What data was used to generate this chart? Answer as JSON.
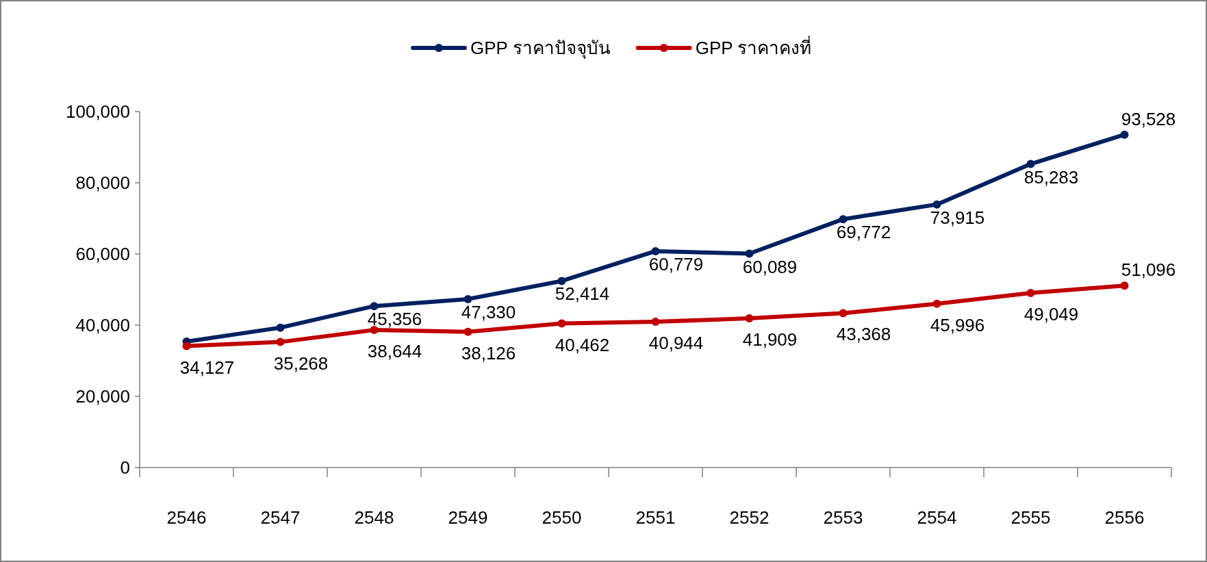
{
  "chart_data": {
    "type": "line",
    "categories": [
      "2546",
      "2547",
      "2548",
      "2549",
      "2550",
      "2551",
      "2552",
      "2553",
      "2554",
      "2555",
      "2556"
    ],
    "series": [
      {
        "name": "GPP ราคาปัจจุบัน",
        "color": "#002060",
        "values": [
          35400,
          39300,
          45356,
          47330,
          52414,
          60779,
          60089,
          69772,
          73915,
          85283,
          93528
        ],
        "value_labels": [
          null,
          null,
          "45,356",
          "47,330",
          "52,414",
          "60,779",
          "60,089",
          "69,772",
          "73,915",
          "85,283",
          "93,528"
        ]
      },
      {
        "name": "GPP ราคาคงที่",
        "color": "#c00000",
        "values": [
          34127,
          35268,
          38644,
          38126,
          40462,
          40944,
          41909,
          43368,
          45996,
          49049,
          51096
        ],
        "value_labels": [
          "34,127",
          "35,268",
          "38,644",
          "38,126",
          "40,462",
          "40,944",
          "41,909",
          "43,368",
          "45,996",
          "49,049",
          "51,096"
        ]
      }
    ],
    "ylim": [
      0,
      100000
    ],
    "yticks": [
      {
        "value": 0,
        "label": "0"
      },
      {
        "value": 20000,
        "label": "20,000"
      },
      {
        "value": 40000,
        "label": "40,000"
      },
      {
        "value": 60000,
        "label": "60,000"
      },
      {
        "value": 80000,
        "label": "80,000"
      },
      {
        "value": 100000,
        "label": "100,000"
      }
    ],
    "grid": false,
    "legend": "top",
    "marker": "circle",
    "line_style": "solid"
  }
}
